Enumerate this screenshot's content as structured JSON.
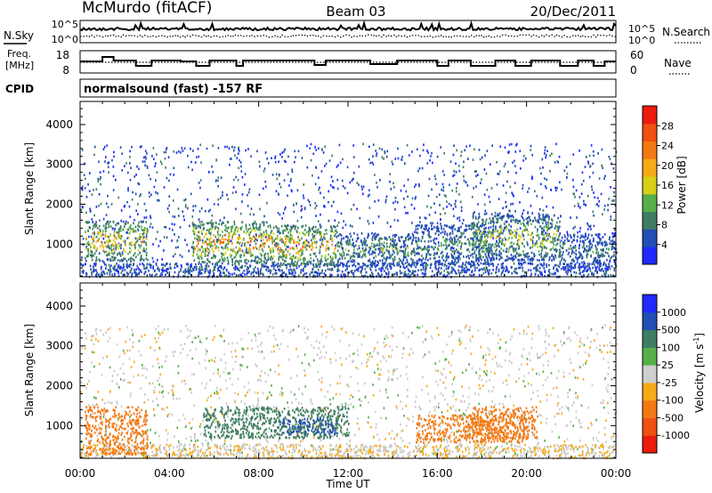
{
  "header": {
    "station": "McMurdo (fitACF)",
    "beam": "Beam 03",
    "date": "20/Dec/2011"
  },
  "noise_panel": {
    "left_label": "N.Sky",
    "right_label": "N.Search",
    "left_ticks": [
      "10^5",
      "10^0"
    ],
    "right_ticks": [
      "10^5",
      "10^0"
    ]
  },
  "freq_panel": {
    "left_label_1": "Freq.",
    "left_label_2": "[MHz]",
    "right_label": "Nave",
    "left_ticks": [
      "18",
      "8"
    ],
    "right_ticks": [
      "60",
      "0"
    ]
  },
  "cpid": {
    "label": "CPID",
    "text": "normalsound (fast) -157 RF"
  },
  "colors": {
    "power": [
      "#1f2bff",
      "#234eb4",
      "#3f7d62",
      "#56b04a",
      "#d8cf16",
      "#f7aa18",
      "#f47915",
      "#f05010",
      "#ea1c0c"
    ],
    "velocity": [
      "#ea1c0c",
      "#f05010",
      "#f47915",
      "#f7aa18",
      "#cfcfcf",
      "#56b04a",
      "#3f7d62",
      "#234eb4",
      "#1f2bff"
    ],
    "ground_scatter": "#c8c8c8"
  },
  "chart_data": [
    {
      "type": "heatmap",
      "name": "power",
      "ylabel": "Slant Range [km]",
      "yticks": [
        "1000",
        "2000",
        "3000",
        "4000"
      ],
      "ylim": [
        180,
        4580
      ],
      "xlim_hours": [
        0,
        24
      ],
      "colorbar": {
        "label": "Power [dB]",
        "ticks": [
          "4",
          "8",
          "12",
          "16",
          "20",
          "24",
          "28"
        ],
        "range": [
          0,
          30
        ]
      },
      "scatter_clusters": [
        {
          "t0": 0.2,
          "t1": 3.0,
          "r0": 600,
          "r1": 1600,
          "peak": 26
        },
        {
          "t0": 5.0,
          "t1": 8.5,
          "r0": 550,
          "r1": 1600,
          "peak": 28
        },
        {
          "t0": 8.5,
          "t1": 11.5,
          "r0": 500,
          "r1": 1500,
          "peak": 27
        },
        {
          "t0": 11.5,
          "t1": 15.0,
          "r0": 450,
          "r1": 1300,
          "peak": 16
        },
        {
          "t0": 15.0,
          "t1": 18.5,
          "r0": 500,
          "r1": 1500,
          "peak": 14
        },
        {
          "t0": 17.5,
          "t1": 21.5,
          "r0": 600,
          "r1": 1800,
          "peak": 20
        },
        {
          "t0": 21.5,
          "t1": 24.0,
          "r0": 400,
          "r1": 1300,
          "peak": 12
        }
      ]
    },
    {
      "type": "heatmap",
      "name": "velocity",
      "xlabel": "Time UT",
      "ylabel": "Slant Range [km]",
      "yticks": [
        "1000",
        "2000",
        "3000",
        "4000"
      ],
      "ylim": [
        180,
        4580
      ],
      "xticks": [
        "00:00",
        "04:00",
        "08:00",
        "12:00",
        "16:00",
        "20:00",
        "00:00"
      ],
      "xlim_hours": [
        0,
        24
      ],
      "colorbar": {
        "label": "Velocity [m s",
        "label_sup": "-1",
        "label_end": "]",
        "ticks": [
          "-1000",
          "-500",
          "-100",
          "-25",
          "25",
          "100",
          "500",
          "1000"
        ],
        "range": [
          -1200,
          1200
        ]
      },
      "scatter_clusters": [
        {
          "t0": 0.2,
          "t1": 3.0,
          "r0": 300,
          "r1": 1500,
          "velocity": -300
        },
        {
          "t0": 5.5,
          "t1": 12.0,
          "r0": 700,
          "r1": 1500,
          "velocity": 250
        },
        {
          "t0": 9.0,
          "t1": 11.5,
          "r0": 800,
          "r1": 1200,
          "velocity": 700
        },
        {
          "t0": 15.0,
          "t1": 20.0,
          "r0": 600,
          "r1": 1300,
          "velocity": -300
        },
        {
          "t0": 17.5,
          "t1": 20.5,
          "r0": 700,
          "r1": 1500,
          "velocity": -350
        }
      ]
    }
  ]
}
